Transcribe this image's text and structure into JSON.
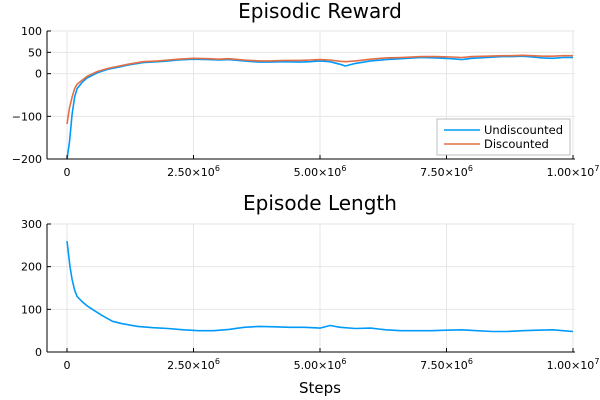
{
  "chart_data": [
    {
      "type": "line",
      "title": "Episodic Reward",
      "xlabel": "",
      "ylabel": "",
      "xlim": [
        0,
        10000000
      ],
      "ylim": [
        -200,
        100
      ],
      "yticks": [
        "−200",
        "−100",
        "0",
        "50",
        "100"
      ],
      "yticks_values": [
        -200,
        -100,
        0,
        50,
        100
      ],
      "xticks": [
        {
          "value": 0,
          "mantissa": "0",
          "exp": ""
        },
        {
          "value": 2500000,
          "mantissa": "2.50×10",
          "exp": "6"
        },
        {
          "value": 5000000,
          "mantissa": "5.00×10",
          "exp": "6"
        },
        {
          "value": 7500000,
          "mantissa": "7.50×10",
          "exp": "6"
        },
        {
          "value": 10000000,
          "mantissa": "1.00×10",
          "exp": "7"
        }
      ],
      "grid": true,
      "legend": "bottom-right",
      "series": [
        {
          "name": "Undiscounted",
          "color": "#009AFA",
          "x": [
            0,
            50000,
            100000,
            150000,
            200000,
            300000,
            400000,
            600000,
            800000,
            1000000,
            1200000,
            1500000,
            1800000,
            2000000,
            2200000,
            2500000,
            2800000,
            3000000,
            3200000,
            3500000,
            3800000,
            4000000,
            4300000,
            4600000,
            4800000,
            5000000,
            5200000,
            5400000,
            5500000,
            5700000,
            6000000,
            6300000,
            6600000,
            7000000,
            7300000,
            7600000,
            7800000,
            8000000,
            8300000,
            8600000,
            8800000,
            9000000,
            9200000,
            9400000,
            9600000,
            9800000,
            10000000
          ],
          "y": [
            -200,
            -160,
            -95,
            -55,
            -35,
            -20,
            -10,
            2,
            10,
            15,
            20,
            26,
            28,
            30,
            32,
            34,
            33,
            32,
            33,
            30,
            27,
            27,
            28,
            27,
            28,
            30,
            28,
            22,
            18,
            24,
            30,
            33,
            35,
            38,
            37,
            35,
            33,
            36,
            38,
            40,
            40,
            41,
            39,
            37,
            36,
            38,
            38
          ]
        },
        {
          "name": "Discounted",
          "color": "#E36F47",
          "x": [
            0,
            50000,
            100000,
            150000,
            200000,
            300000,
            400000,
            600000,
            800000,
            1000000,
            1200000,
            1500000,
            1800000,
            2000000,
            2200000,
            2500000,
            2800000,
            3000000,
            3200000,
            3500000,
            3800000,
            4000000,
            4300000,
            4600000,
            4800000,
            5000000,
            5200000,
            5400000,
            5500000,
            5700000,
            6000000,
            6300000,
            6600000,
            7000000,
            7300000,
            7600000,
            7800000,
            8000000,
            8300000,
            8600000,
            8800000,
            9000000,
            9200000,
            9400000,
            9600000,
            9800000,
            10000000
          ],
          "y": [
            -118,
            -80,
            -55,
            -35,
            -25,
            -15,
            -6,
            5,
            12,
            17,
            22,
            28,
            30,
            32,
            34,
            36,
            35,
            34,
            35,
            32,
            30,
            30,
            31,
            31,
            32,
            33,
            32,
            29,
            28,
            30,
            34,
            37,
            38,
            40,
            40,
            39,
            38,
            40,
            41,
            42,
            42,
            43,
            42,
            41,
            41,
            42,
            42
          ]
        }
      ]
    },
    {
      "type": "line",
      "title": "Episode Length",
      "xlabel": "Steps",
      "ylabel": "",
      "xlim": [
        0,
        10000000
      ],
      "ylim": [
        0,
        300
      ],
      "yticks": [
        "0",
        "100",
        "200",
        "300"
      ],
      "yticks_values": [
        0,
        100,
        200,
        300
      ],
      "xticks": [
        {
          "value": 0,
          "mantissa": "0",
          "exp": ""
        },
        {
          "value": 2500000,
          "mantissa": "2.50×10",
          "exp": "6"
        },
        {
          "value": 5000000,
          "mantissa": "5.00×10",
          "exp": "6"
        },
        {
          "value": 7500000,
          "mantissa": "7.50×10",
          "exp": "6"
        },
        {
          "value": 10000000,
          "mantissa": "1.00×10",
          "exp": "7"
        }
      ],
      "grid": true,
      "series": [
        {
          "color": "#009AFA",
          "x": [
            0,
            30000,
            60000,
            100000,
            150000,
            200000,
            300000,
            400000,
            500000,
            700000,
            900000,
            1100000,
            1400000,
            1700000,
            2000000,
            2300000,
            2600000,
            2900000,
            3200000,
            3500000,
            3800000,
            4100000,
            4400000,
            4700000,
            5000000,
            5200000,
            5400000,
            5700000,
            6000000,
            6300000,
            6600000,
            6900000,
            7200000,
            7500000,
            7800000,
            8100000,
            8400000,
            8700000,
            9000000,
            9300000,
            9600000,
            9800000,
            10000000
          ],
          "y": [
            260,
            230,
            200,
            170,
            145,
            130,
            118,
            108,
            100,
            85,
            72,
            66,
            60,
            57,
            55,
            52,
            50,
            50,
            53,
            58,
            60,
            59,
            58,
            58,
            56,
            62,
            58,
            55,
            56,
            52,
            50,
            50,
            50,
            51,
            52,
            50,
            48,
            48,
            50,
            51,
            52,
            50,
            48
          ]
        }
      ]
    }
  ]
}
